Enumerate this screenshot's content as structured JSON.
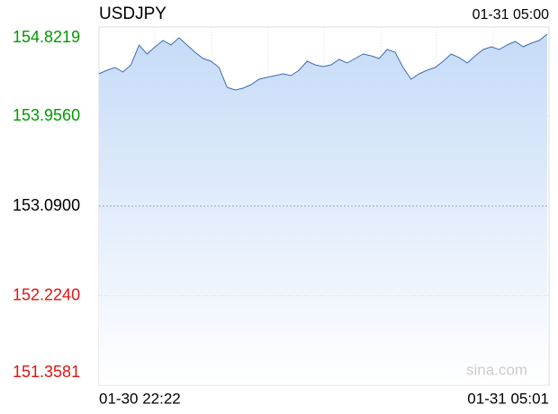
{
  "chart_data": {
    "type": "line",
    "title": "USDJPY",
    "time_label": "01-31 05:00",
    "x_start_label": "01-30 22:22",
    "x_end_label": "01-31 05:01",
    "watermark": "sina.com",
    "ylim": [
      151.3581,
      154.8219
    ],
    "yticks": [
      {
        "value": 154.8219,
        "label": "154.8219"
      },
      {
        "value": 153.956,
        "label": "153.9560"
      },
      {
        "value": 153.09,
        "label": "153.0900"
      },
      {
        "value": 152.224,
        "label": "152.2240"
      },
      {
        "value": 151.3581,
        "label": "151.3581"
      }
    ],
    "ytick_colors": [
      "#009900",
      "#009900",
      "#000000",
      "#e0140f",
      "#e0140f"
    ],
    "color": "#3d6cb5",
    "grid": true,
    "values": [
      154.369,
      154.404,
      154.43,
      154.387,
      154.456,
      154.648,
      154.561,
      154.63,
      154.691,
      154.648,
      154.718,
      154.648,
      154.578,
      154.517,
      154.491,
      154.43,
      154.239,
      154.213,
      154.23,
      154.265,
      154.317,
      154.335,
      154.352,
      154.369,
      154.352,
      154.404,
      154.491,
      154.456,
      154.439,
      154.456,
      154.509,
      154.474,
      154.517,
      154.561,
      154.543,
      154.517,
      154.604,
      154.578,
      154.43,
      154.317,
      154.369,
      154.404,
      154.43,
      154.491,
      154.561,
      154.526,
      154.474,
      154.543,
      154.604,
      154.63,
      154.604,
      154.648,
      154.683,
      154.63,
      154.665,
      154.691,
      154.752
    ]
  }
}
